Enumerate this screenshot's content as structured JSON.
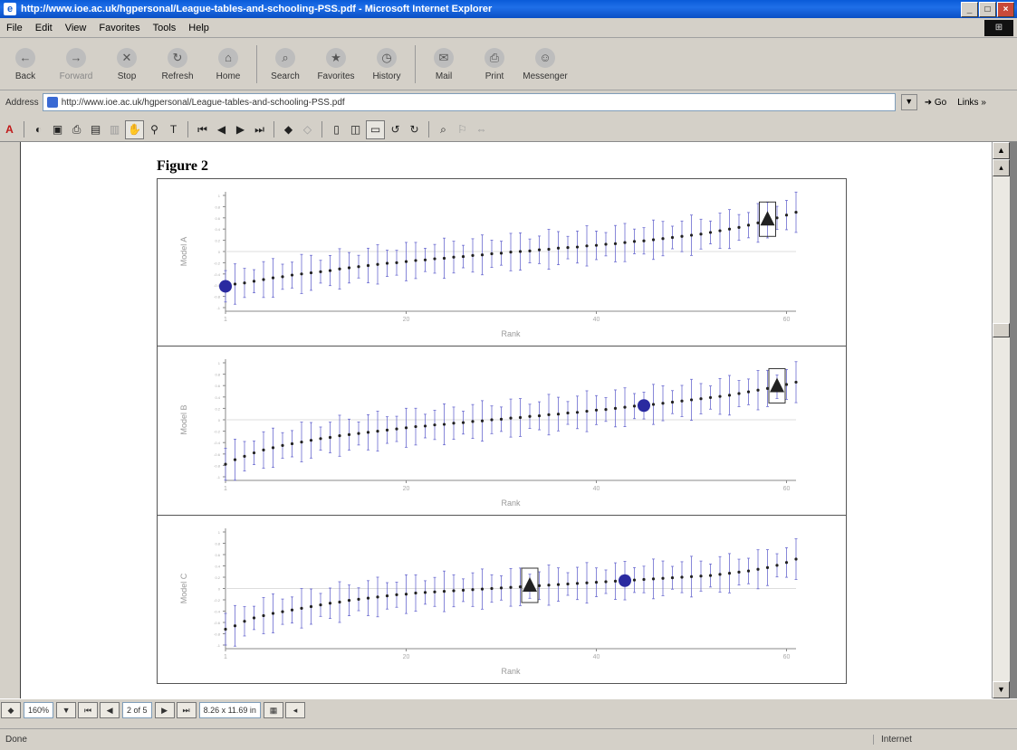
{
  "window": {
    "title": "http://www.ioe.ac.uk/hgpersonal/League-tables-and-schooling-PSS.pdf - Microsoft Internet Explorer",
    "min": "_",
    "max": "□",
    "close": "×"
  },
  "menu": [
    "File",
    "Edit",
    "View",
    "Favorites",
    "Tools",
    "Help"
  ],
  "toolbar": {
    "back": "Back",
    "forward": "Forward",
    "stop": "Stop",
    "refresh": "Refresh",
    "home": "Home",
    "search": "Search",
    "favorites": "Favorites",
    "history": "History",
    "mail": "Mail",
    "print": "Print",
    "messenger": "Messenger"
  },
  "address": {
    "label": "Address",
    "url": "http://www.ioe.ac.uk/hgpersonal/League-tables-and-schooling-PSS.pdf",
    "go": "Go",
    "links": "Links »"
  },
  "document": {
    "figure_title": "Figure 2"
  },
  "chart_data": [
    {
      "type": "scatter",
      "ylabel": "Model A",
      "xlabel": "Rank",
      "x_ticks": [
        "1",
        "20",
        "40",
        "60"
      ],
      "y_ticks": [
        "1",
        "0.8",
        "0.6",
        "0.4",
        "0.2",
        "0",
        "-0.2",
        "-0.4",
        "-0.6",
        "-0.8",
        "-1"
      ],
      "circle_rank": 1,
      "triangle_rank": 58,
      "series_values": [
        -0.62,
        -0.58,
        -0.56,
        -0.53,
        -0.5,
        -0.47,
        -0.45,
        -0.42,
        -0.4,
        -0.38,
        -0.36,
        -0.34,
        -0.31,
        -0.29,
        -0.27,
        -0.25,
        -0.23,
        -0.21,
        -0.2,
        -0.18,
        -0.16,
        -0.15,
        -0.13,
        -0.12,
        -0.1,
        -0.09,
        -0.07,
        -0.06,
        -0.04,
        -0.03,
        -0.01,
        0,
        0.01,
        0.03,
        0.04,
        0.06,
        0.07,
        0.08,
        0.1,
        0.11,
        0.13,
        0.14,
        0.16,
        0.18,
        0.19,
        0.21,
        0.23,
        0.25,
        0.27,
        0.29,
        0.31,
        0.34,
        0.37,
        0.4,
        0.43,
        0.47,
        0.51,
        0.56,
        0.6,
        0.65,
        0.7
      ]
    },
    {
      "type": "scatter",
      "ylabel": "Model B",
      "xlabel": "Rank",
      "x_ticks": [
        "1",
        "20",
        "40",
        "60"
      ],
      "y_ticks": [
        "1",
        "0.8",
        "0.6",
        "0.4",
        "0.2",
        "0",
        "-0.2",
        "-0.4",
        "-0.6",
        "-0.8",
        "-1"
      ],
      "circle_rank": 45,
      "triangle_rank": 59,
      "series_values": [
        -0.78,
        -0.7,
        -0.64,
        -0.58,
        -0.53,
        -0.49,
        -0.45,
        -0.42,
        -0.39,
        -0.36,
        -0.33,
        -0.31,
        -0.28,
        -0.26,
        -0.24,
        -0.22,
        -0.2,
        -0.18,
        -0.16,
        -0.14,
        -0.12,
        -0.11,
        -0.09,
        -0.08,
        -0.06,
        -0.05,
        -0.03,
        -0.02,
        0,
        0.01,
        0.03,
        0.04,
        0.06,
        0.07,
        0.09,
        0.1,
        0.12,
        0.13,
        0.15,
        0.17,
        0.18,
        0.2,
        0.22,
        0.24,
        0.25,
        0.27,
        0.29,
        0.31,
        0.33,
        0.35,
        0.37,
        0.39,
        0.41,
        0.43,
        0.46,
        0.49,
        0.52,
        0.55,
        0.58,
        0.62,
        0.66
      ]
    },
    {
      "type": "scatter",
      "ylabel": "Model C",
      "xlabel": "Rank",
      "x_ticks": [
        "1",
        "20",
        "40",
        "60"
      ],
      "y_ticks": [
        "1",
        "0.8",
        "0.6",
        "0.4",
        "0.2",
        "0",
        "-0.2",
        "-0.4",
        "-0.6",
        "-0.8",
        "-1"
      ],
      "circle_rank": 43,
      "triangle_rank": 33,
      "series_values": [
        -0.72,
        -0.66,
        -0.58,
        -0.52,
        -0.48,
        -0.44,
        -0.41,
        -0.38,
        -0.35,
        -0.32,
        -0.29,
        -0.26,
        -0.24,
        -0.21,
        -0.19,
        -0.17,
        -0.15,
        -0.13,
        -0.11,
        -0.1,
        -0.08,
        -0.07,
        -0.06,
        -0.05,
        -0.04,
        -0.03,
        -0.02,
        -0.01,
        0,
        0.01,
        0.02,
        0.03,
        0.04,
        0.05,
        0.06,
        0.07,
        0.08,
        0.09,
        0.1,
        0.11,
        0.12,
        0.13,
        0.14,
        0.15,
        0.16,
        0.17,
        0.18,
        0.19,
        0.2,
        0.21,
        0.22,
        0.23,
        0.25,
        0.27,
        0.29,
        0.31,
        0.34,
        0.37,
        0.41,
        0.46,
        0.52
      ]
    }
  ],
  "pager": {
    "zoom": "160%",
    "page": "2 of 5",
    "size": "8.26 x 11.69 in"
  },
  "status": {
    "left": "Done",
    "zone": "Internet"
  },
  "colors": {
    "accent": "#0a5bd8",
    "chart_marker": "#2a2aa0"
  }
}
